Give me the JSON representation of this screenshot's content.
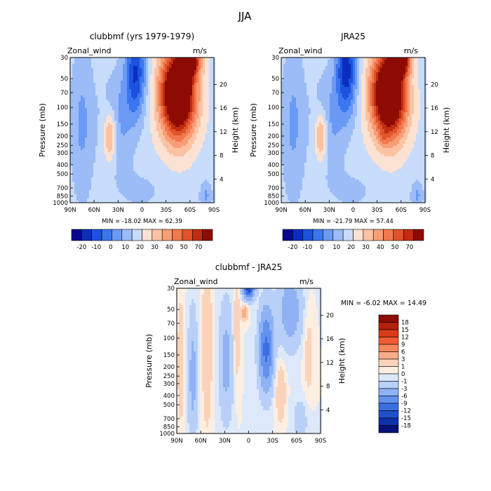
{
  "figure_title": "JJA",
  "chart_data": [
    {
      "type": "heatmap",
      "title": "clubbmf (yrs 1979-1979)",
      "left_label": "Zonal_wind",
      "units": "m/s",
      "ylabel": "Pressure (mb)",
      "y2label": "Height (km)",
      "x_ticks": [
        "90N",
        "60N",
        "30N",
        "0",
        "30S",
        "60S",
        "90S"
      ],
      "y_ticks": [
        "30",
        "50",
        "70",
        "100",
        "150",
        "200",
        "250",
        "300",
        "400",
        "500",
        "700",
        "850",
        "1000"
      ],
      "y2_ticks": [
        "20",
        "16",
        "12",
        "8",
        "4"
      ],
      "min_max_text": "MIN = -18.02   MAX = 62.39",
      "min": -18.02,
      "max": 62.39,
      "colorbar_labels": [
        "-20",
        "-10",
        "0",
        "10",
        "20",
        "30",
        "40",
        "50",
        "70"
      ]
    },
    {
      "type": "heatmap",
      "title": "JRA25",
      "left_label": "Zonal_wind",
      "units": "m/s",
      "ylabel": "Pressure (mb)",
      "y2label": "Height (km)",
      "x_ticks": [
        "90N",
        "60N",
        "30N",
        "0",
        "30S",
        "60S",
        "90S"
      ],
      "y_ticks": [
        "30",
        "50",
        "70",
        "100",
        "150",
        "200",
        "250",
        "300",
        "400",
        "500",
        "700",
        "850",
        "1000"
      ],
      "y2_ticks": [
        "20",
        "16",
        "12",
        "8",
        "4"
      ],
      "min_max_text": "MIN = -21.79   MAX = 57.44",
      "min": -21.79,
      "max": 57.44,
      "colorbar_labels": [
        "-20",
        "-10",
        "0",
        "10",
        "20",
        "30",
        "40",
        "50",
        "70"
      ]
    },
    {
      "type": "heatmap",
      "title": "clubbmf - JRA25",
      "left_label": "Zonal_wind",
      "units": "m/s",
      "ylabel": "Pressure (mb)",
      "y2label": "Height (km)",
      "x_ticks": [
        "90N",
        "60N",
        "30N",
        "0",
        "30S",
        "60S",
        "90S"
      ],
      "y_ticks": [
        "30",
        "50",
        "70",
        "100",
        "150",
        "200",
        "250",
        "300",
        "400",
        "500",
        "700",
        "850",
        "1000"
      ],
      "y2_ticks": [
        "20",
        "16",
        "12",
        "8",
        "4"
      ],
      "min_max_text": "MIN =   -6.02   MAX =   14.49",
      "min": -6.02,
      "max": 14.49,
      "colorbar_labels": [
        "18",
        "15",
        "12",
        "9",
        "6",
        "3",
        "1",
        "0",
        "-1",
        "-3",
        "-6",
        "-9",
        "-12",
        "-15",
        "-18"
      ]
    }
  ],
  "colors": {
    "top_palette": [
      "#08088a",
      "#0b2dbf",
      "#1c52de",
      "#3b76f0",
      "#6a9af5",
      "#9cbcf8",
      "#c8dcfb",
      "#fbe2d2",
      "#fbc3a3",
      "#f89e76",
      "#f2784e",
      "#e0542c",
      "#c02d10",
      "#8e0b03"
    ],
    "diff_palette": [
      "#8e0b03",
      "#b4200a",
      "#d83c16",
      "#ef5c33",
      "#f6865c",
      "#f9ad88",
      "#fbd3bb",
      "#fdeee2",
      "#dde9fb",
      "#b8d0f8",
      "#8fb2f4",
      "#6391ee",
      "#3a6fe2",
      "#2050cc",
      "#0e30a8",
      "#061278"
    ]
  }
}
